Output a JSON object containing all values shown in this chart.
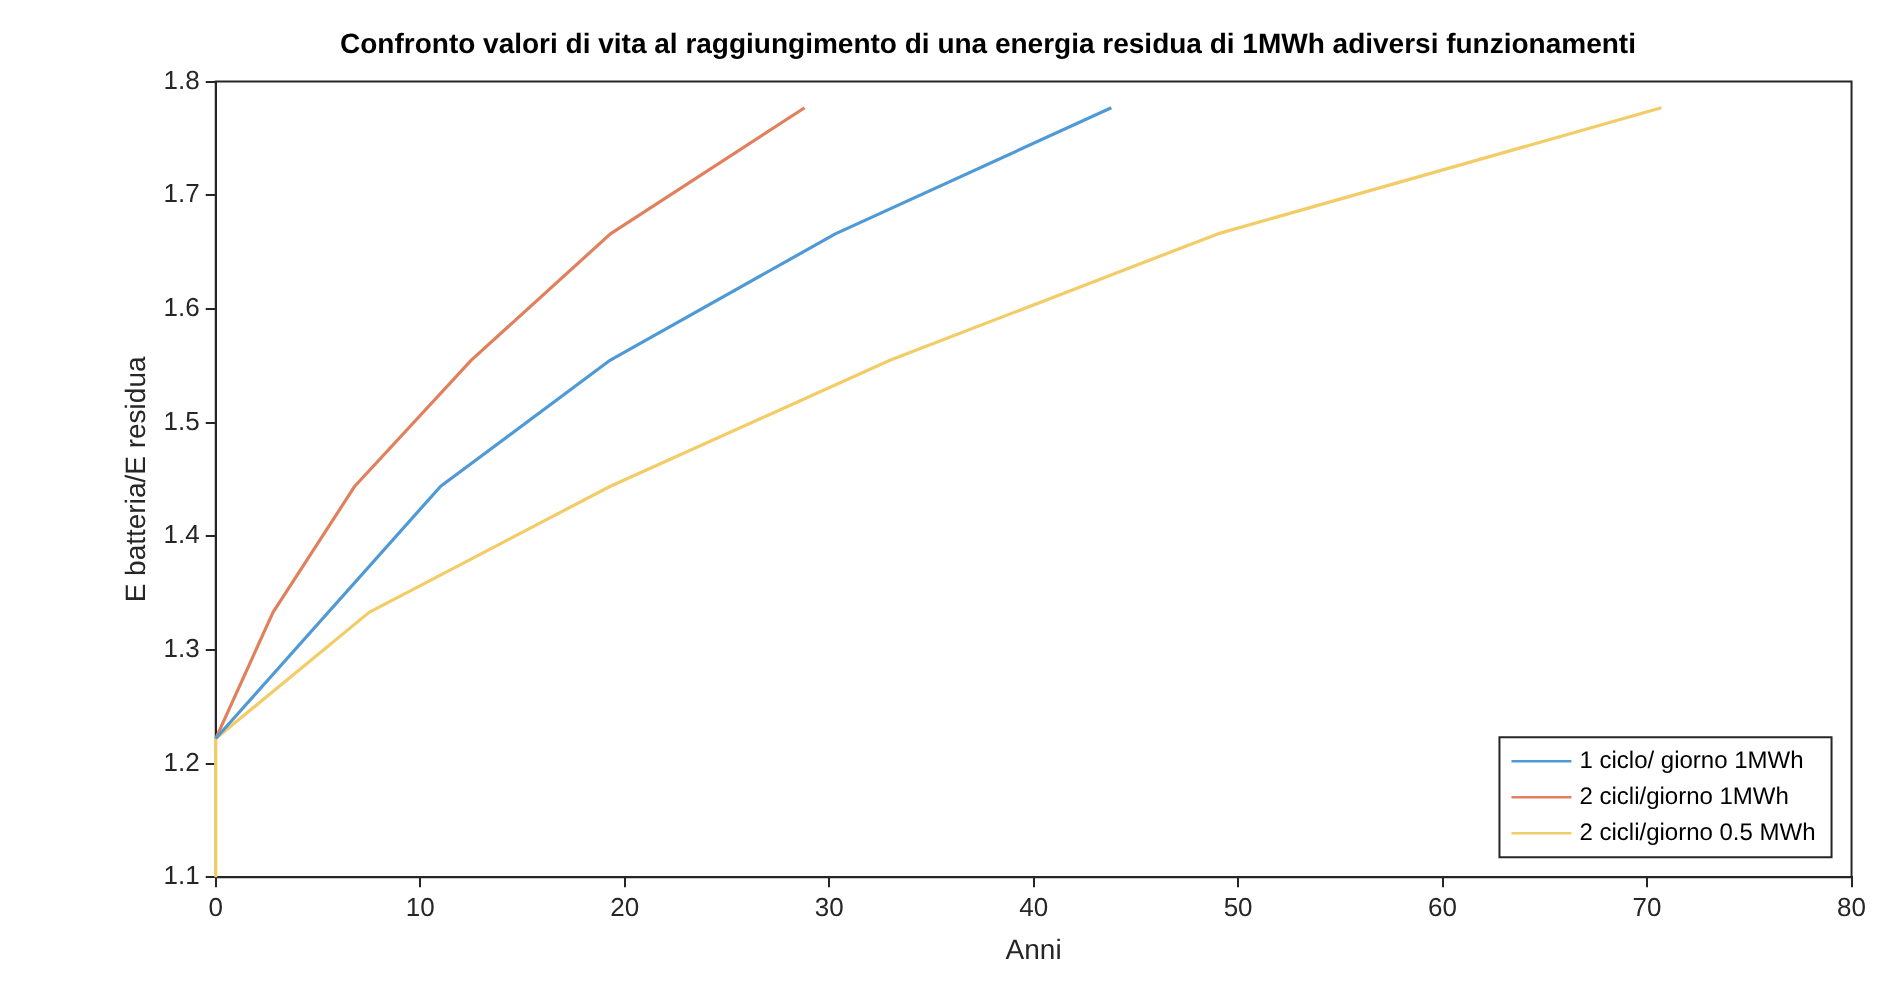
{
  "chart_data": {
    "type": "line",
    "title": "Confronto valori di vita al raggiungimento di una energia residua di 1MWh adiversi funzionamenti",
    "xlabel": "Anni",
    "ylabel": "E batteria/E residua",
    "xlim": [
      0,
      80
    ],
    "xticks": [
      0,
      10,
      20,
      30,
      40,
      50,
      60,
      70,
      80
    ],
    "ylim": [
      1.1,
      1.8
    ],
    "yticks": [
      1.1,
      1.2,
      1.3,
      1.4,
      1.5,
      1.6,
      1.7,
      1.8
    ],
    "grid": false,
    "legend": "bottom right",
    "marker": "none",
    "line_style": "solid",
    "series": [
      {
        "name": "1 ciclo/ giorno 1MWh",
        "color": "#4f9ad6",
        "x": [
          0,
          11,
          19.3,
          30.3,
          43.8
        ],
        "values": [
          1.222,
          1.444,
          1.555,
          1.666,
          1.777
        ]
      },
      {
        "name": "2 cicli/giorno 1MWh",
        "color": "#e0805c",
        "x": [
          0,
          2.8,
          6.8,
          12.5,
          19.3,
          28.8
        ],
        "values": [
          1.222,
          1.333,
          1.444,
          1.555,
          1.666,
          1.777
        ]
      },
      {
        "name": "2 cicli/giorno 0.5 MWh",
        "color": "#f2cc66",
        "x": [
          0,
          0,
          7.5,
          19.3,
          33,
          49,
          70.7
        ],
        "values": [
          1.1,
          1.222,
          1.333,
          1.444,
          1.555,
          1.666,
          1.777
        ]
      }
    ]
  }
}
